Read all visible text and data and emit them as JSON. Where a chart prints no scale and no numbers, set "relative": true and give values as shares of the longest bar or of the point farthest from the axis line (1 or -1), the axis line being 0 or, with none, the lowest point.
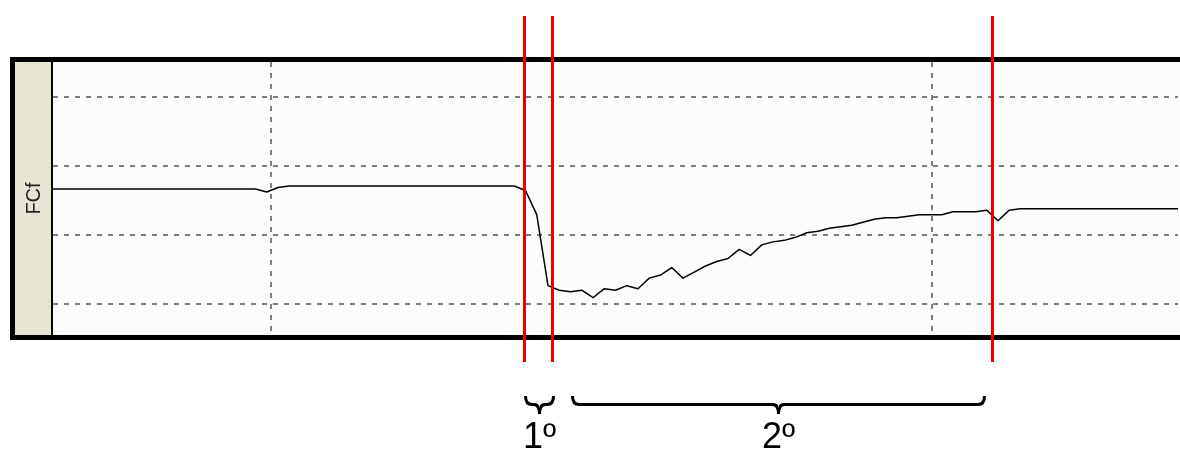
{
  "chart_data": {
    "type": "line",
    "relative": true,
    "ylabel": "FCf",
    "grid": true,
    "marker": "none",
    "line_style": "solid",
    "categories": [
      null,
      null,
      null,
      null,
      null,
      null,
      null,
      null,
      null,
      null,
      null,
      null,
      null,
      null,
      null,
      null,
      null,
      null,
      null,
      null,
      null,
      null,
      null,
      null,
      null,
      null,
      null,
      null,
      null,
      null,
      null,
      null,
      null,
      null,
      null,
      null,
      null,
      null,
      null,
      null,
      null,
      null,
      null,
      null,
      null,
      null,
      null,
      null,
      null,
      null,
      null,
      null,
      null,
      null,
      null,
      null,
      null,
      null,
      null,
      null,
      null,
      null,
      null,
      null,
      null,
      null,
      null,
      null,
      null,
      null,
      null,
      null,
      null,
      null,
      null,
      null,
      null,
      null,
      null,
      null,
      null,
      null,
      null,
      null,
      null,
      null,
      null,
      null,
      null,
      null,
      null,
      null,
      null,
      null,
      null,
      null,
      null,
      null,
      null,
      null,
      null
    ],
    "series": [
      {
        "color": "#000000",
        "values": [
          0.98,
          0.98,
          0.98,
          0.98,
          0.98,
          0.98,
          0.98,
          0.98,
          0.98,
          0.98,
          0.98,
          0.98,
          0.98,
          0.98,
          0.98,
          0.98,
          0.98,
          0.98,
          0.98,
          0.96,
          0.99,
          1.0,
          1.0,
          1.0,
          1.0,
          1.0,
          1.0,
          1.0,
          1.0,
          1.0,
          1.0,
          1.0,
          1.0,
          1.0,
          1.0,
          1.0,
          1.0,
          1.0,
          1.0,
          1.0,
          1.0,
          1.0,
          0.97,
          0.81,
          0.34,
          0.31,
          0.3,
          0.31,
          0.26,
          0.32,
          0.31,
          0.34,
          0.32,
          0.39,
          0.41,
          0.46,
          0.39,
          0.43,
          0.47,
          0.5,
          0.52,
          0.58,
          0.54,
          0.61,
          0.63,
          0.64,
          0.66,
          0.69,
          0.7,
          0.72,
          0.73,
          0.74,
          0.76,
          0.78,
          0.79,
          0.79,
          0.8,
          0.81,
          0.81,
          0.81,
          0.83,
          0.83,
          0.83,
          0.84,
          0.77,
          0.84,
          0.85,
          0.85,
          0.85,
          0.85,
          0.85,
          0.85,
          0.85,
          0.85,
          0.85,
          0.85,
          0.85,
          0.85,
          0.85,
          0.85,
          0.85
        ]
      }
    ],
    "annotations": [
      "1º",
      "2º"
    ]
  }
}
